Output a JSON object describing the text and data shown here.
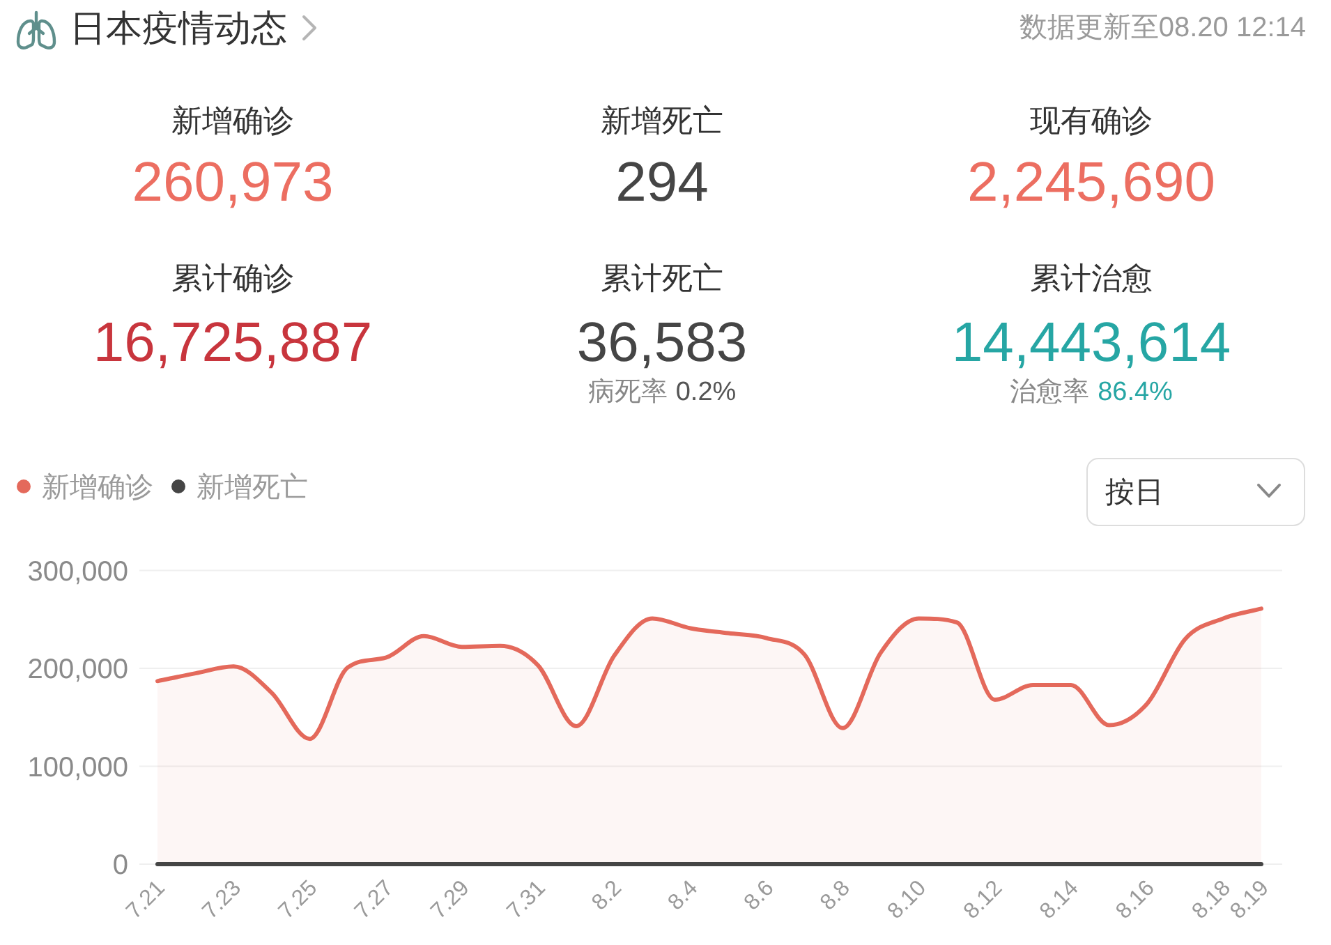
{
  "chart_data": [
    {
      "type": "other",
      "title": "日本疫情动态",
      "subtitle": "数据更新至08.20 12:14",
      "categories": [
        "新增确诊",
        "新增死亡",
        "现有确诊",
        "累计确诊",
        "累计死亡",
        "累计治愈",
        "病死率",
        "治愈率"
      ],
      "value_labels": [
        "260,973",
        "294",
        "2,245,690",
        "16,725,887",
        "36,583",
        "14,443,614",
        "0.2%",
        "86.4%"
      ],
      "colors": [
        "#ec6e61",
        "#454545",
        "#ec6e61",
        "#c8353d",
        "#454545",
        "#26a6a4",
        "#555555",
        "#26a6a4"
      ]
    },
    {
      "type": "line",
      "categories": [
        "7.21",
        null,
        "7.23",
        null,
        "7.25",
        null,
        "7.27",
        null,
        "7.29",
        null,
        "7.31",
        null,
        "8.2",
        null,
        "8.4",
        null,
        "8.6",
        null,
        "8.8",
        null,
        "8.10",
        null,
        "8.12",
        null,
        "8.14",
        null,
        "8.16",
        null,
        "8.18",
        "8.19"
      ],
      "series": [
        {
          "name": "新增确诊",
          "type": "area",
          "color": "#e4695b",
          "values": [
            187000,
            195000,
            202000,
            175000,
            128000,
            201000,
            211000,
            233000,
            222000,
            223000,
            203000,
            141000,
            213000,
            251000,
            241000,
            236000,
            231000,
            214000,
            139000,
            216000,
            251000,
            247000,
            168000,
            183000,
            183000,
            142000,
            164000,
            230000,
            251000,
            261000
          ]
        },
        {
          "name": "新增死亡",
          "type": "line",
          "color": "#454545",
          "values": [
            0,
            0,
            0,
            0,
            0,
            0,
            0,
            0,
            0,
            0,
            0,
            0,
            0,
            0,
            0,
            0,
            0,
            0,
            0,
            0,
            0,
            0,
            0,
            0,
            0,
            0,
            0,
            0,
            0,
            0
          ]
        }
      ],
      "ylim": [
        0,
        300000
      ],
      "yticks": [
        0,
        {
          "value": 100000,
          "label": "100,000"
        },
        {
          "value": 200000,
          "label": "200,000"
        },
        {
          "value": 300000,
          "label": "300,000"
        }
      ],
      "grid": "y",
      "legend": "top left",
      "annotations": [
        "按日"
      ]
    }
  ]
}
